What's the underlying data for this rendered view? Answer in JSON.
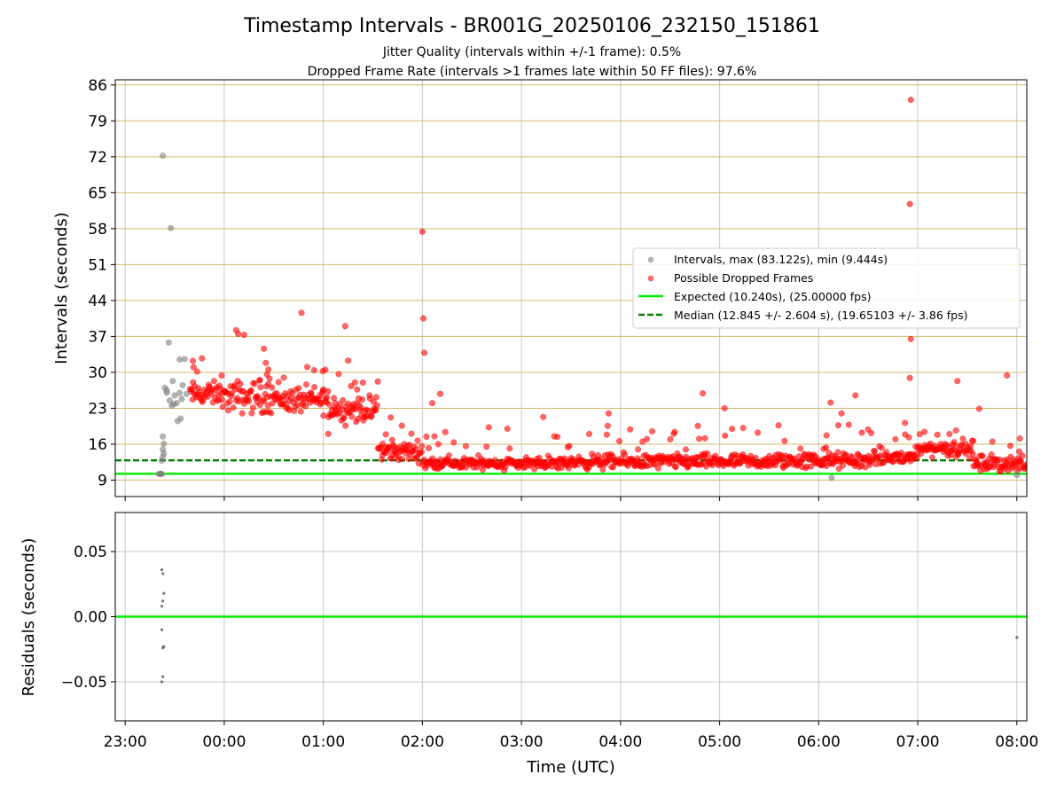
{
  "title": "Timestamp Intervals - BR001G_20250106_232150_151861",
  "subtitle_line1": "Jitter Quality (intervals within +/-1 frame): 0.5%",
  "subtitle_line2": "Dropped Frame Rate (intervals >1 frames late within 50 FF files): 97.6%",
  "colors": {
    "intervals": "#808080",
    "dropped": "#ff0000",
    "expected": "#00ee00",
    "median": "#008000",
    "hgrid": "#d4b96a",
    "vgrid": "#c8c8c8"
  },
  "chart_data": [
    {
      "type": "scatter",
      "name": "intervals",
      "ylabel": "Intervals (seconds)",
      "ylim": [
        5.8,
        87
      ],
      "xlim_hours": [
        -1.1,
        8.1
      ],
      "y_ticks": [
        "9",
        "16",
        "23",
        "30",
        "37",
        "44",
        "51",
        "58",
        "65",
        "72",
        "79",
        "86"
      ],
      "grid": "on",
      "legend_position": "right",
      "legend": [
        {
          "key": "intervals",
          "label": "Intervals, max (83.122s), min (9.444s)",
          "marker": "dot",
          "color": "#808080"
        },
        {
          "key": "dropped",
          "label": "Possible Dropped Frames",
          "marker": "dot",
          "color": "#ff0000"
        },
        {
          "key": "expected",
          "label": "Expected (10.240s), (25.00000 fps)",
          "marker": "line",
          "color": "#00ee00"
        },
        {
          "key": "median",
          "label": "Median (12.845 +/- 2.604 s), (19.65103 +/- 3.86 fps)",
          "marker": "dashed",
          "color": "#008000"
        }
      ],
      "reference_lines": {
        "expected": 10.24,
        "median": 12.845,
        "median_until_hours": 7.6
      },
      "series": [
        {
          "name": "Intervals, max (83.122s), min (9.444s)",
          "points": [
            [
              -0.62,
              72.2
            ],
            [
              -0.54,
              58.1
            ],
            [
              -0.56,
              35.8
            ],
            [
              -0.45,
              32.5
            ],
            [
              -0.4,
              32.6
            ],
            [
              -0.52,
              28.3
            ],
            [
              -0.58,
              26.5
            ],
            [
              -0.5,
              25.5
            ],
            [
              -0.55,
              24.5
            ],
            [
              -0.48,
              24.0
            ],
            [
              -0.53,
              23.5
            ],
            [
              -0.45,
              26.0
            ],
            [
              -0.42,
              27.5
            ],
            [
              -0.38,
              25.8
            ],
            [
              -0.44,
              21.0
            ],
            [
              -0.47,
              20.5
            ],
            [
              -0.6,
              27.0
            ],
            [
              -0.58,
              26.0
            ],
            [
              -0.43,
              24.8
            ],
            [
              -0.51,
              23.8
            ],
            [
              -0.62,
              17.5
            ],
            [
              -0.61,
              16.1
            ],
            [
              -0.62,
              15.0
            ],
            [
              -0.61,
              14.2
            ],
            [
              -0.62,
              13.5
            ],
            [
              -0.63,
              12.8
            ],
            [
              -0.66,
              10.2
            ],
            [
              -0.64,
              10.2
            ],
            [
              -0.63,
              10.2
            ],
            [
              -0.65,
              10.2
            ],
            [
              6.13,
              9.44
            ],
            [
              8.0,
              10.0
            ]
          ]
        },
        {
          "name": "Possible Dropped Frames",
          "points": [
            [
              0.12,
              38.2
            ],
            [
              0.14,
              37.5
            ],
            [
              0.2,
              37.3
            ],
            [
              0.78,
              41.6
            ],
            [
              1.02,
              30.5
            ],
            [
              1.22,
              39.0
            ],
            [
              0.4,
              34.6
            ],
            [
              1.25,
              32.3
            ],
            [
              1.4,
              28.0
            ],
            [
              1.55,
              28.2
            ],
            [
              2.0,
              57.4
            ],
            [
              2.01,
              40.5
            ],
            [
              2.02,
              33.8
            ],
            [
              2.18,
              25.8
            ],
            [
              2.1,
              24.0
            ],
            [
              1.05,
              18.0
            ],
            [
              -0.31,
              31.0
            ],
            [
              3.22,
              21.3
            ],
            [
              3.88,
              22.0
            ],
            [
              4.83,
              25.9
            ],
            [
              5.05,
              23.0
            ],
            [
              6.12,
              24.1
            ],
            [
              6.23,
              22.0
            ],
            [
              6.37,
              25.5
            ],
            [
              6.93,
              83.1
            ],
            [
              6.92,
              62.8
            ],
            [
              6.93,
              36.5
            ],
            [
              6.92,
              28.9
            ],
            [
              7.4,
              28.3
            ],
            [
              7.9,
              29.4
            ],
            [
              7.62,
              22.9
            ]
          ]
        }
      ]
    },
    {
      "type": "scatter",
      "name": "residuals",
      "xlabel": "Time (UTC)",
      "ylabel": "Residuals (seconds)",
      "ylim": [
        -0.08,
        0.08
      ],
      "y_ticks": [
        "−0.05",
        "0.00",
        "0.05"
      ],
      "x_ticks": [
        "23:00",
        "00:00",
        "01:00",
        "02:00",
        "03:00",
        "04:00",
        "05:00",
        "06:00",
        "07:00",
        "08:00"
      ],
      "zero_line_color": "#00ee00",
      "points": [
        [
          -0.63,
          0.036
        ],
        [
          -0.62,
          0.033
        ],
        [
          -0.61,
          0.018
        ],
        [
          -0.62,
          0.012
        ],
        [
          -0.63,
          0.008
        ],
        [
          -0.63,
          -0.01
        ],
        [
          -0.61,
          -0.023
        ],
        [
          -0.62,
          -0.024
        ],
        [
          -0.62,
          -0.046
        ],
        [
          -0.63,
          -0.05
        ],
        [
          8.0,
          -0.016
        ]
      ]
    }
  ]
}
